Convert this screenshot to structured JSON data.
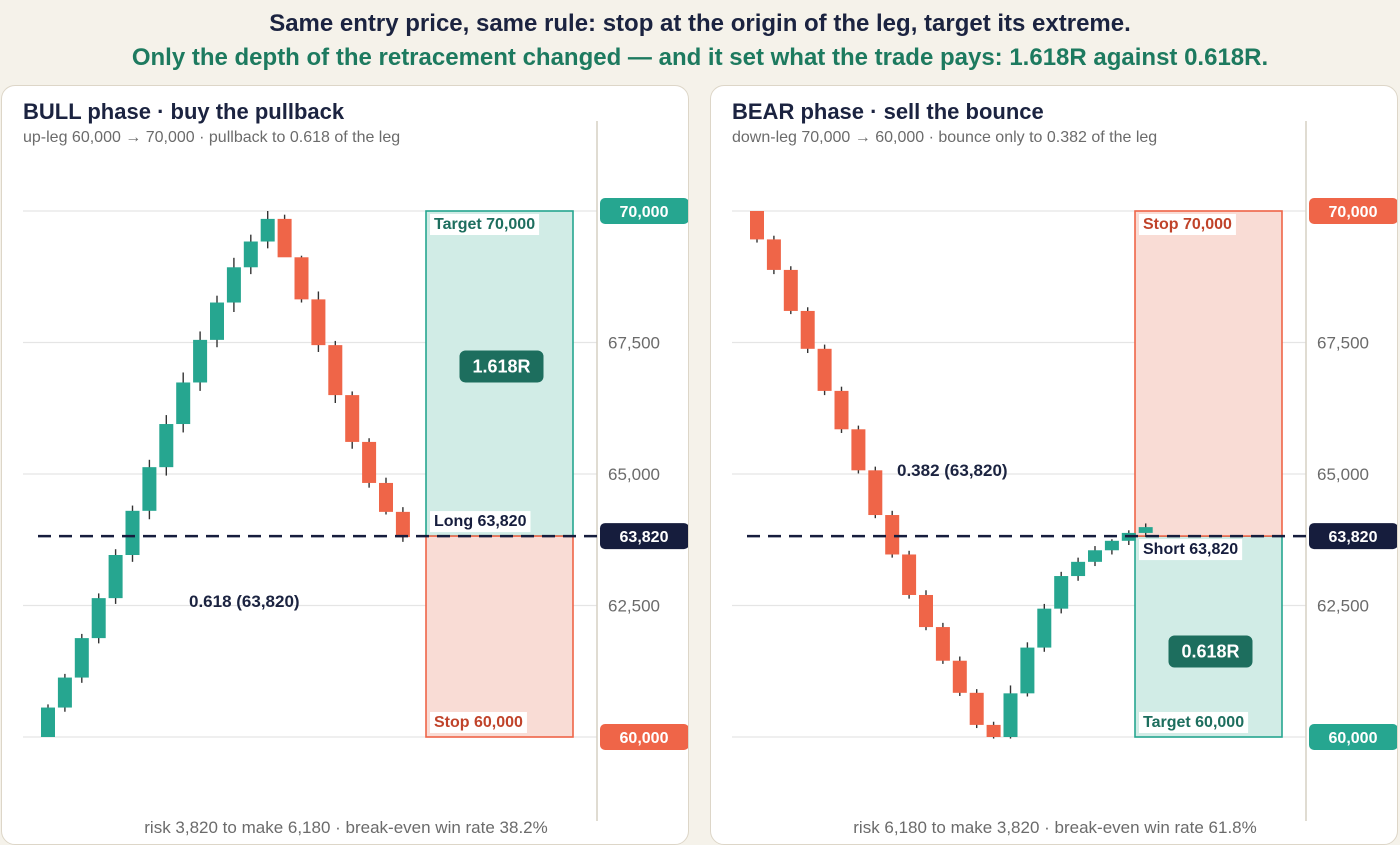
{
  "headline": {
    "line1": "Same entry price, same rule: stop at the origin of the leg, target its extreme.",
    "line2": "Only the depth of the retracement changed — and it set what the trade pays: 1.618R against 0.618R."
  },
  "colors": {
    "bull": "#26a690",
    "bear": "#ef6548",
    "dark": "#161d3d",
    "reward_fill": "#d1ece6",
    "risk_fill": "#f9dcd5",
    "badge": "#1d6e5e",
    "grid": "#e5e5e5"
  },
  "chart_data": [
    {
      "type": "candlestick",
      "title": "BULL phase · buy the pullback",
      "subtitle": "up-leg 60,000 → 70,000 · pullback to 0.618 of the leg",
      "footer": "risk 3,820 to make 6,180 · break-even win rate 38.2%",
      "ylim": [
        59000,
        71000
      ],
      "y_ticks": [
        {
          "value": 67500,
          "label": "67,500"
        },
        {
          "value": 65000,
          "label": "65,000"
        },
        {
          "value": 62500,
          "label": "62,500"
        }
      ],
      "price_tags": [
        {
          "value": 70000,
          "label": "70,000",
          "color": "#26a690"
        },
        {
          "value": 63820,
          "label": "63,820",
          "color": "#161d3d"
        },
        {
          "value": 60000,
          "label": "60,000",
          "color": "#ef6548"
        }
      ],
      "entry": 63820,
      "fib_label": "0.618 (63,820)",
      "reward_zone": {
        "from": 63820,
        "to": 70000,
        "label": "Target 70,000"
      },
      "risk_zone": {
        "from": 60000,
        "to": 63820,
        "label": "Stop 60,000"
      },
      "entry_label": "Long 63,820",
      "r_badge": "1.618R",
      "candles": [
        {
          "o": 60000,
          "h": 60620,
          "l": 60000,
          "c": 60560
        },
        {
          "o": 60560,
          "h": 61200,
          "l": 60480,
          "c": 61130
        },
        {
          "o": 61130,
          "h": 61960,
          "l": 61030,
          "c": 61880
        },
        {
          "o": 61880,
          "h": 62730,
          "l": 61780,
          "c": 62640
        },
        {
          "o": 62640,
          "h": 63570,
          "l": 62530,
          "c": 63460
        },
        {
          "o": 63460,
          "h": 64400,
          "l": 63330,
          "c": 64300
        },
        {
          "o": 64300,
          "h": 65270,
          "l": 64140,
          "c": 65130
        },
        {
          "o": 65130,
          "h": 66120,
          "l": 64970,
          "c": 65950
        },
        {
          "o": 65950,
          "h": 66930,
          "l": 65790,
          "c": 66740
        },
        {
          "o": 66740,
          "h": 67710,
          "l": 66580,
          "c": 67550
        },
        {
          "o": 67550,
          "h": 68390,
          "l": 67410,
          "c": 68260
        },
        {
          "o": 68260,
          "h": 69110,
          "l": 68080,
          "c": 68930
        },
        {
          "o": 68930,
          "h": 69550,
          "l": 68800,
          "c": 69420
        },
        {
          "o": 69420,
          "h": 70000,
          "l": 69290,
          "c": 69850
        },
        {
          "o": 69850,
          "h": 69930,
          "l": 69240,
          "c": 69120
        },
        {
          "o": 69120,
          "h": 69150,
          "l": 68260,
          "c": 68320
        },
        {
          "o": 68320,
          "h": 68470,
          "l": 67320,
          "c": 67450
        },
        {
          "o": 67450,
          "h": 67530,
          "l": 66350,
          "c": 66500
        },
        {
          "o": 66500,
          "h": 66570,
          "l": 65480,
          "c": 65610
        },
        {
          "o": 65610,
          "h": 65680,
          "l": 64740,
          "c": 64830
        },
        {
          "o": 64830,
          "h": 64930,
          "l": 64230,
          "c": 64280
        },
        {
          "o": 64280,
          "h": 64370,
          "l": 63710,
          "c": 63800
        }
      ]
    },
    {
      "type": "candlestick",
      "title": "BEAR phase · sell the bounce",
      "subtitle": "down-leg 70,000 → 60,000 · bounce only to 0.382 of the leg",
      "footer": "risk 6,180 to make 3,820 · break-even win rate 61.8%",
      "ylim": [
        59000,
        71000
      ],
      "y_ticks": [
        {
          "value": 67500,
          "label": "67,500"
        },
        {
          "value": 65000,
          "label": "65,000"
        },
        {
          "value": 62500,
          "label": "62,500"
        }
      ],
      "price_tags": [
        {
          "value": 70000,
          "label": "70,000",
          "color": "#ef6548"
        },
        {
          "value": 63820,
          "label": "63,820",
          "color": "#161d3d"
        },
        {
          "value": 60000,
          "label": "60,000",
          "color": "#26a690"
        }
      ],
      "entry": 63820,
      "fib_label": "0.382 (63,820)",
      "reward_zone": {
        "from": 60000,
        "to": 63820,
        "label": "Target 60,000"
      },
      "risk_zone": {
        "from": 63820,
        "to": 70000,
        "label": "Stop 70,000"
      },
      "entry_label": "Short 63,820",
      "r_badge": "0.618R",
      "candles": [
        {
          "o": 70000,
          "h": 70000,
          "l": 69400,
          "c": 69460
        },
        {
          "o": 69460,
          "h": 69530,
          "l": 68800,
          "c": 68880
        },
        {
          "o": 68880,
          "h": 68950,
          "l": 68040,
          "c": 68100
        },
        {
          "o": 68100,
          "h": 68170,
          "l": 67300,
          "c": 67380
        },
        {
          "o": 67380,
          "h": 67460,
          "l": 66500,
          "c": 66580
        },
        {
          "o": 66580,
          "h": 66660,
          "l": 65780,
          "c": 65850
        },
        {
          "o": 65850,
          "h": 65920,
          "l": 65010,
          "c": 65070
        },
        {
          "o": 65070,
          "h": 65140,
          "l": 64160,
          "c": 64220
        },
        {
          "o": 64220,
          "h": 64300,
          "l": 63410,
          "c": 63470
        },
        {
          "o": 63470,
          "h": 63540,
          "l": 62630,
          "c": 62700
        },
        {
          "o": 62700,
          "h": 62790,
          "l": 62030,
          "c": 62090
        },
        {
          "o": 62090,
          "h": 62170,
          "l": 61390,
          "c": 61450
        },
        {
          "o": 61450,
          "h": 61530,
          "l": 60780,
          "c": 60840
        },
        {
          "o": 60840,
          "h": 60910,
          "l": 60170,
          "c": 60230
        },
        {
          "o": 60230,
          "h": 60290,
          "l": 59970,
          "c": 60000
        },
        {
          "o": 60000,
          "h": 60980,
          "l": 59970,
          "c": 60830
        },
        {
          "o": 60830,
          "h": 61800,
          "l": 60770,
          "c": 61700
        },
        {
          "o": 61700,
          "h": 62530,
          "l": 61620,
          "c": 62440
        },
        {
          "o": 62440,
          "h": 63140,
          "l": 62350,
          "c": 63060
        },
        {
          "o": 63060,
          "h": 63410,
          "l": 62970,
          "c": 63330
        },
        {
          "o": 63330,
          "h": 63630,
          "l": 63250,
          "c": 63550
        },
        {
          "o": 63550,
          "h": 63760,
          "l": 63470,
          "c": 63730
        },
        {
          "o": 63730,
          "h": 63930,
          "l": 63650,
          "c": 63880
        },
        {
          "o": 63880,
          "h": 64060,
          "l": 63800,
          "c": 63990
        }
      ]
    }
  ]
}
